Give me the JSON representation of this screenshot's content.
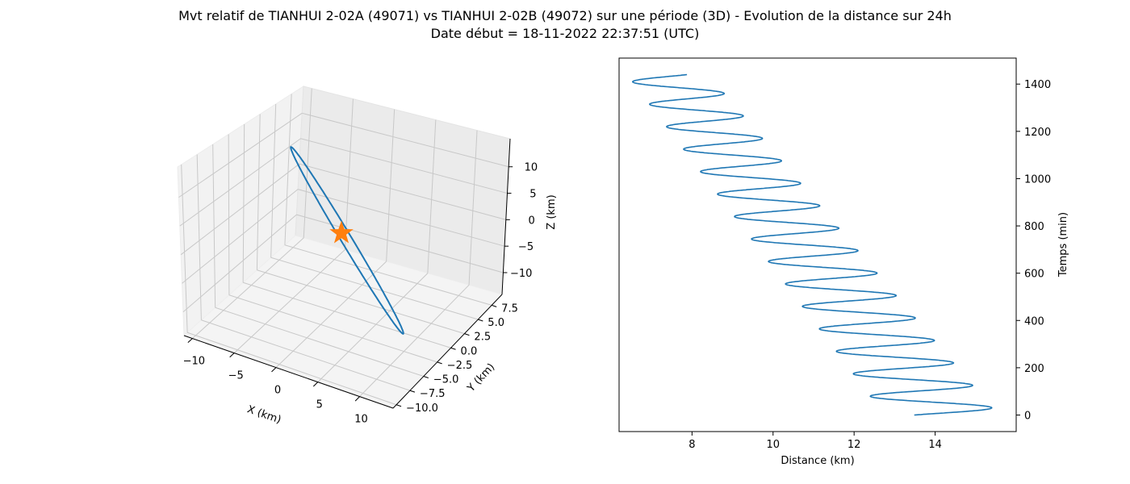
{
  "title_line1": "Mvt relatif de TIANHUI 2-02A (49071) vs TIANHUI 2-02B (49072) sur une période (3D) - Evolution de la distance sur 24h",
  "title_line2": "Date début = 18-11-2022 22:37:51 (UTC)",
  "colors": {
    "line": "#1f77b4",
    "star": "#ff7f0e"
  },
  "chart_data": [
    {
      "type": "line3d",
      "xlabel": "X (km)",
      "ylabel": "Y (km)",
      "zlabel": "Z (km)",
      "x_ticks": [
        "−10",
        "−5",
        "0",
        "5",
        "10"
      ],
      "y_ticks": [
        "−10.0",
        "−7.5",
        "−5.0",
        "−2.5",
        "0.0",
        "2.5",
        "5.0",
        "7.5"
      ],
      "z_ticks": [
        "−10",
        "−5",
        "0",
        "5",
        "10"
      ],
      "series": [
        {
          "kind": "orbit-ellipse",
          "approx_extent": {
            "x": [
              -11,
              11
            ],
            "y": [
              -9.5,
              9
            ],
            "z": [
              -11,
              11
            ]
          }
        }
      ],
      "marker": {
        "shape": "star",
        "x": 0,
        "y": 0,
        "z": 0
      },
      "grid": true
    },
    {
      "type": "line",
      "xlabel": "Distance (km)",
      "ylabel": "Temps (min)",
      "xlim": [
        6.2,
        16.0
      ],
      "ylim": [
        -70,
        1510
      ],
      "x_ticks": [
        8,
        10,
        12,
        14
      ],
      "y_ticks": [
        0,
        200,
        400,
        600,
        800,
        1000,
        1200,
        1400
      ],
      "yaxis_side": "right",
      "series": [
        {
          "model": "distance = center(t) + amplitude(t) * sin(2*pi*(t - 7.5)/orbital_period)",
          "orbital_period_min": 95,
          "t_range": [
            0,
            1440
          ],
          "center_km": [
            [
              0,
              14.15
            ],
            [
              1440,
              7.4
            ]
          ],
          "amplitude_km": [
            [
              0,
              1.4
            ],
            [
              1440,
              1.0
            ]
          ],
          "start_point": {
            "distance": 13.7,
            "time": 0
          },
          "end_point": {
            "distance": 8.15,
            "time": 1440
          }
        }
      ]
    }
  ]
}
